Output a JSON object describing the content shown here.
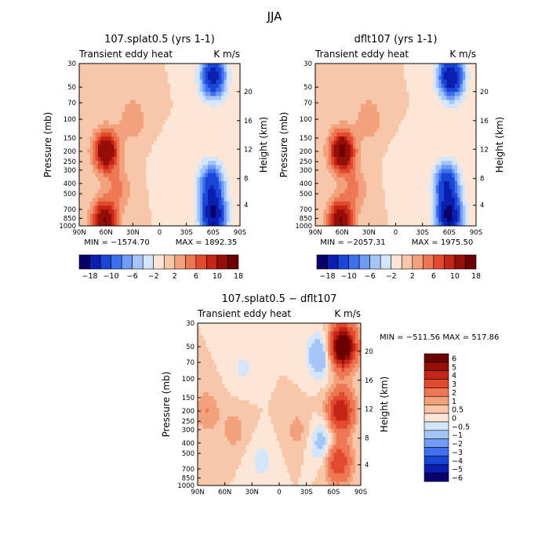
{
  "figure_title": "JJA",
  "colors": {
    "palette": [
      "#08006b",
      "#0a1fb0",
      "#1a46d8",
      "#3d6fee",
      "#6f9bf5",
      "#a6c5f7",
      "#d4e6fb",
      "#fde6d6",
      "#f8c6a8",
      "#f3a07c",
      "#ee7753",
      "#e24a2d",
      "#c42516",
      "#950e07",
      "#6b0000"
    ]
  },
  "chart_data": [
    {
      "type": "heatmap",
      "title": "107.splat0.5 (yrs 1-1)",
      "subtitle_left": "Transient eddy heat",
      "subtitle_right": "K m/s",
      "ylabel": "Pressure (mb)",
      "ylabel_right": "Height (km)",
      "x_ticks": [
        "90N",
        "60N",
        "30N",
        "0",
        "30S",
        "60S",
        "90S"
      ],
      "y_ticks": [
        "30",
        "50",
        "70",
        "100",
        "150",
        "200",
        "250",
        "300",
        "400",
        "500",
        "700",
        "850",
        "1000"
      ],
      "y_right_ticks": [
        "20",
        "16",
        "12",
        "8",
        "4"
      ],
      "min_label": "MIN = −1574.70",
      "max_label": "MAX = 1892.35",
      "colorbar_labels": [
        "−18",
        "−10",
        "−6",
        "−2",
        "2",
        "6",
        "10",
        "18"
      ],
      "colorbar_label_nums": [
        -18,
        -10,
        -6,
        -2,
        2,
        6,
        10,
        18
      ],
      "colorbar_levels": [
        -18,
        -14,
        -10,
        -8,
        -6,
        -4,
        -2,
        0,
        2,
        4,
        6,
        8,
        10,
        14,
        18
      ],
      "fields": [
        {
          "lat": 60,
          "p": 200,
          "value": 14
        },
        {
          "lat": 62,
          "p": 900,
          "value": 14
        },
        {
          "lat": 30,
          "p": 100,
          "value": 4
        },
        {
          "lat": 45,
          "p": 450,
          "value": 4
        },
        {
          "lat": -58,
          "p": 400,
          "value": -12
        },
        {
          "lat": -60,
          "p": 800,
          "value": -18
        },
        {
          "lat": -60,
          "p": 40,
          "value": -16
        },
        {
          "lat": -10,
          "p": 300,
          "value": -1
        }
      ]
    },
    {
      "type": "heatmap",
      "title": "dflt107 (yrs 1-1)",
      "subtitle_left": "Transient eddy heat",
      "subtitle_right": "K m/s",
      "ylabel": "Pressure (mb)",
      "ylabel_right": "Height (km)",
      "x_ticks": [
        "90N",
        "60N",
        "30N",
        "0",
        "30S",
        "60S",
        "90S"
      ],
      "y_ticks": [
        "30",
        "50",
        "70",
        "100",
        "150",
        "200",
        "250",
        "300",
        "400",
        "500",
        "700",
        "850",
        "1000"
      ],
      "y_right_ticks": [
        "20",
        "16",
        "12",
        "8",
        "4"
      ],
      "min_label": "MIN = −2057.31",
      "max_label": "MAX = 1975.50",
      "colorbar_labels": [
        "−18",
        "−10",
        "−6",
        "−2",
        "2",
        "6",
        "10",
        "18"
      ],
      "colorbar_label_nums": [
        -18,
        -10,
        -6,
        -2,
        2,
        6,
        10,
        18
      ],
      "colorbar_levels": [
        -18,
        -14,
        -10,
        -8,
        -6,
        -4,
        -2,
        0,
        2,
        4,
        6,
        8,
        10,
        14,
        18
      ],
      "fields": [
        {
          "lat": 60,
          "p": 200,
          "value": 15
        },
        {
          "lat": 62,
          "p": 900,
          "value": 14
        },
        {
          "lat": 30,
          "p": 100,
          "value": 4
        },
        {
          "lat": 45,
          "p": 450,
          "value": 4
        },
        {
          "lat": -57,
          "p": 400,
          "value": -13
        },
        {
          "lat": -60,
          "p": 820,
          "value": -19
        },
        {
          "lat": -62,
          "p": 40,
          "value": -18
        },
        {
          "lat": -10,
          "p": 300,
          "value": -1
        }
      ]
    },
    {
      "type": "heatmap",
      "title": "107.splat0.5 − dflt107",
      "subtitle_left": "Transient eddy heat",
      "subtitle_right": "K m/s",
      "ylabel": "Pressure (mb)",
      "ylabel_right": "Height (km)",
      "x_ticks": [
        "90N",
        "60N",
        "30N",
        "0",
        "30S",
        "60S",
        "90S"
      ],
      "y_ticks": [
        "30",
        "50",
        "70",
        "100",
        "150",
        "200",
        "250",
        "300",
        "400",
        "500",
        "700",
        "850",
        "1000"
      ],
      "y_right_ticks": [
        "20",
        "16",
        "12",
        "8",
        "4"
      ],
      "minmax_label": "MIN = −511.56   MAX = 517.86",
      "colorbar_labels": [
        "6",
        "5",
        "4",
        "3",
        "2",
        "1",
        "0.5",
        "0",
        "−0.5",
        "−1",
        "−2",
        "−3",
        "−4",
        "−5",
        "−6"
      ],
      "colorbar_levels": [
        -6,
        -5,
        -4,
        -3,
        -2,
        -1,
        -0.5,
        0,
        0.5,
        1,
        2,
        3,
        4,
        5,
        6
      ],
      "fields": [
        {
          "lat": -70,
          "p": 50,
          "value": 7
        },
        {
          "lat": -68,
          "p": 200,
          "value": 4
        },
        {
          "lat": -65,
          "p": 600,
          "value": 3
        },
        {
          "lat": -45,
          "p": 60,
          "value": -2
        },
        {
          "lat": -48,
          "p": 400,
          "value": -1.5
        },
        {
          "lat": 80,
          "p": 200,
          "value": 1
        },
        {
          "lat": 50,
          "p": 300,
          "value": 0.8
        },
        {
          "lat": 20,
          "p": 600,
          "value": -0.7
        },
        {
          "lat": 40,
          "p": 80,
          "value": -0.6
        },
        {
          "lat": -20,
          "p": 300,
          "value": 0.7
        }
      ]
    }
  ]
}
